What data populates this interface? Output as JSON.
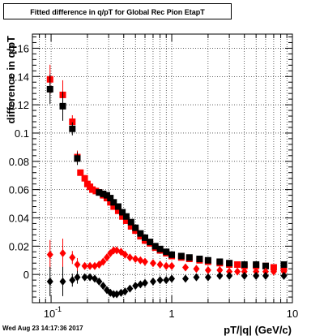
{
  "chart_data": {
    "type": "scatter",
    "title": "Fitted difference in q/pT for Global Rec Pion EtapT",
    "xlabel": "pT/|q| (GeV/c)",
    "ylabel": "difference in q/pT",
    "xscale": "log",
    "xlim": [
      0.07,
      10
    ],
    "ylim": [
      -0.02,
      0.17
    ],
    "x_tick_labels": [
      "10^-1",
      "1",
      "10"
    ],
    "y_tick_labels": [
      "0",
      "0.02",
      "0.04",
      "0.06",
      "0.08",
      "0.1",
      "0.12",
      "0.14",
      "0.16"
    ],
    "grid": true,
    "series": [
      {
        "marker": "square",
        "color": "#ff0000",
        "points": [
          [
            0.098,
            0.138
          ],
          [
            0.125,
            0.127
          ],
          [
            0.15,
            0.108
          ],
          [
            0.165,
            0.083
          ],
          [
            0.175,
            0.072
          ],
          [
            0.19,
            0.068
          ],
          [
            0.2,
            0.064
          ],
          [
            0.21,
            0.062
          ],
          [
            0.22,
            0.06
          ],
          [
            0.235,
            0.059
          ],
          [
            0.25,
            0.058
          ],
          [
            0.27,
            0.056
          ],
          [
            0.29,
            0.054
          ],
          [
            0.31,
            0.051
          ],
          [
            0.33,
            0.048
          ],
          [
            0.36,
            0.045
          ],
          [
            0.39,
            0.041
          ],
          [
            0.42,
            0.038
          ],
          [
            0.46,
            0.034
          ],
          [
            0.5,
            0.031
          ],
          [
            0.55,
            0.027
          ],
          [
            0.6,
            0.024
          ],
          [
            0.66,
            0.022
          ],
          [
            0.73,
            0.019
          ],
          [
            0.8,
            0.017
          ],
          [
            0.9,
            0.015
          ],
          [
            1.0,
            0.013
          ],
          [
            1.2,
            0.012
          ],
          [
            1.4,
            0.011
          ],
          [
            1.7,
            0.01
          ],
          [
            2.0,
            0.009
          ],
          [
            2.5,
            0.008
          ],
          [
            3.0,
            0.007
          ],
          [
            3.5,
            0.007
          ],
          [
            4.0,
            0.006
          ],
          [
            5.0,
            0.006
          ],
          [
            6.0,
            0.006
          ],
          [
            7.0,
            0.005
          ],
          [
            8.5,
            0.005
          ]
        ]
      },
      {
        "marker": "square",
        "color": "#000000",
        "points": [
          [
            0.098,
            0.131
          ],
          [
            0.125,
            0.119
          ],
          [
            0.15,
            0.103
          ],
          [
            0.165,
            0.082
          ],
          [
            0.25,
            0.058
          ],
          [
            0.27,
            0.057
          ],
          [
            0.29,
            0.056
          ],
          [
            0.31,
            0.054
          ],
          [
            0.33,
            0.051
          ],
          [
            0.36,
            0.048
          ],
          [
            0.39,
            0.044
          ],
          [
            0.42,
            0.041
          ],
          [
            0.46,
            0.037
          ],
          [
            0.5,
            0.033
          ],
          [
            0.55,
            0.029
          ],
          [
            0.6,
            0.026
          ],
          [
            0.66,
            0.023
          ],
          [
            0.73,
            0.02
          ],
          [
            0.8,
            0.018
          ],
          [
            0.9,
            0.016
          ],
          [
            1.0,
            0.014
          ],
          [
            1.2,
            0.013
          ],
          [
            1.4,
            0.012
          ],
          [
            1.7,
            0.011
          ],
          [
            2.0,
            0.01
          ],
          [
            2.5,
            0.009
          ],
          [
            3.0,
            0.008
          ],
          [
            4.0,
            0.007
          ],
          [
            5.0,
            0.007
          ],
          [
            6.0,
            0.006
          ],
          [
            8.5,
            0.007
          ]
        ]
      },
      {
        "marker": "diamond",
        "color": "#ff0000",
        "points": [
          [
            0.098,
            0.014
          ],
          [
            0.125,
            0.015
          ],
          [
            0.15,
            0.012
          ],
          [
            0.165,
            0.007
          ],
          [
            0.19,
            0.006
          ],
          [
            0.21,
            0.006
          ],
          [
            0.23,
            0.006
          ],
          [
            0.25,
            0.007
          ],
          [
            0.27,
            0.009
          ],
          [
            0.29,
            0.012
          ],
          [
            0.31,
            0.015
          ],
          [
            0.33,
            0.017
          ],
          [
            0.35,
            0.017
          ],
          [
            0.38,
            0.016
          ],
          [
            0.41,
            0.014
          ],
          [
            0.45,
            0.012
          ],
          [
            0.5,
            0.011
          ],
          [
            0.55,
            0.01
          ],
          [
            0.6,
            0.009
          ],
          [
            0.7,
            0.008
          ],
          [
            0.8,
            0.007
          ],
          [
            0.9,
            0.006
          ],
          [
            1.0,
            0.006
          ],
          [
            1.3,
            0.005
          ],
          [
            1.6,
            0.004
          ],
          [
            2.0,
            0.003
          ],
          [
            2.5,
            0.003
          ],
          [
            3.0,
            0.002
          ],
          [
            3.5,
            0.002
          ],
          [
            4.0,
            0.002
          ],
          [
            5.0,
            0.002
          ],
          [
            6.0,
            0.002
          ],
          [
            7.0,
            0.002
          ],
          [
            8.5,
            0.002
          ]
        ]
      },
      {
        "marker": "diamond",
        "color": "#000000",
        "points": [
          [
            0.098,
            -0.005
          ],
          [
            0.125,
            -0.005
          ],
          [
            0.15,
            -0.004
          ],
          [
            0.165,
            -0.002
          ],
          [
            0.19,
            -0.002
          ],
          [
            0.21,
            -0.002
          ],
          [
            0.23,
            -0.003
          ],
          [
            0.25,
            -0.005
          ],
          [
            0.27,
            -0.008
          ],
          [
            0.29,
            -0.011
          ],
          [
            0.31,
            -0.013
          ],
          [
            0.33,
            -0.014
          ],
          [
            0.35,
            -0.014
          ],
          [
            0.38,
            -0.013
          ],
          [
            0.41,
            -0.012
          ],
          [
            0.45,
            -0.01
          ],
          [
            0.5,
            -0.008
          ],
          [
            0.55,
            -0.007
          ],
          [
            0.6,
            -0.006
          ],
          [
            0.7,
            -0.005
          ],
          [
            0.8,
            -0.004
          ],
          [
            0.9,
            -0.004
          ],
          [
            1.0,
            -0.003
          ],
          [
            1.3,
            -0.003
          ],
          [
            1.6,
            -0.002
          ],
          [
            2.0,
            -0.002
          ],
          [
            2.5,
            -0.001
          ],
          [
            3.0,
            -0.001
          ],
          [
            4.0,
            -0.001
          ],
          [
            5.0,
            -0.001
          ],
          [
            6.0,
            -0.001
          ],
          [
            8.5,
            -0.001
          ]
        ]
      }
    ]
  },
  "footer": {
    "timestamp": "Wed Aug 23 14:17:36 2017"
  }
}
